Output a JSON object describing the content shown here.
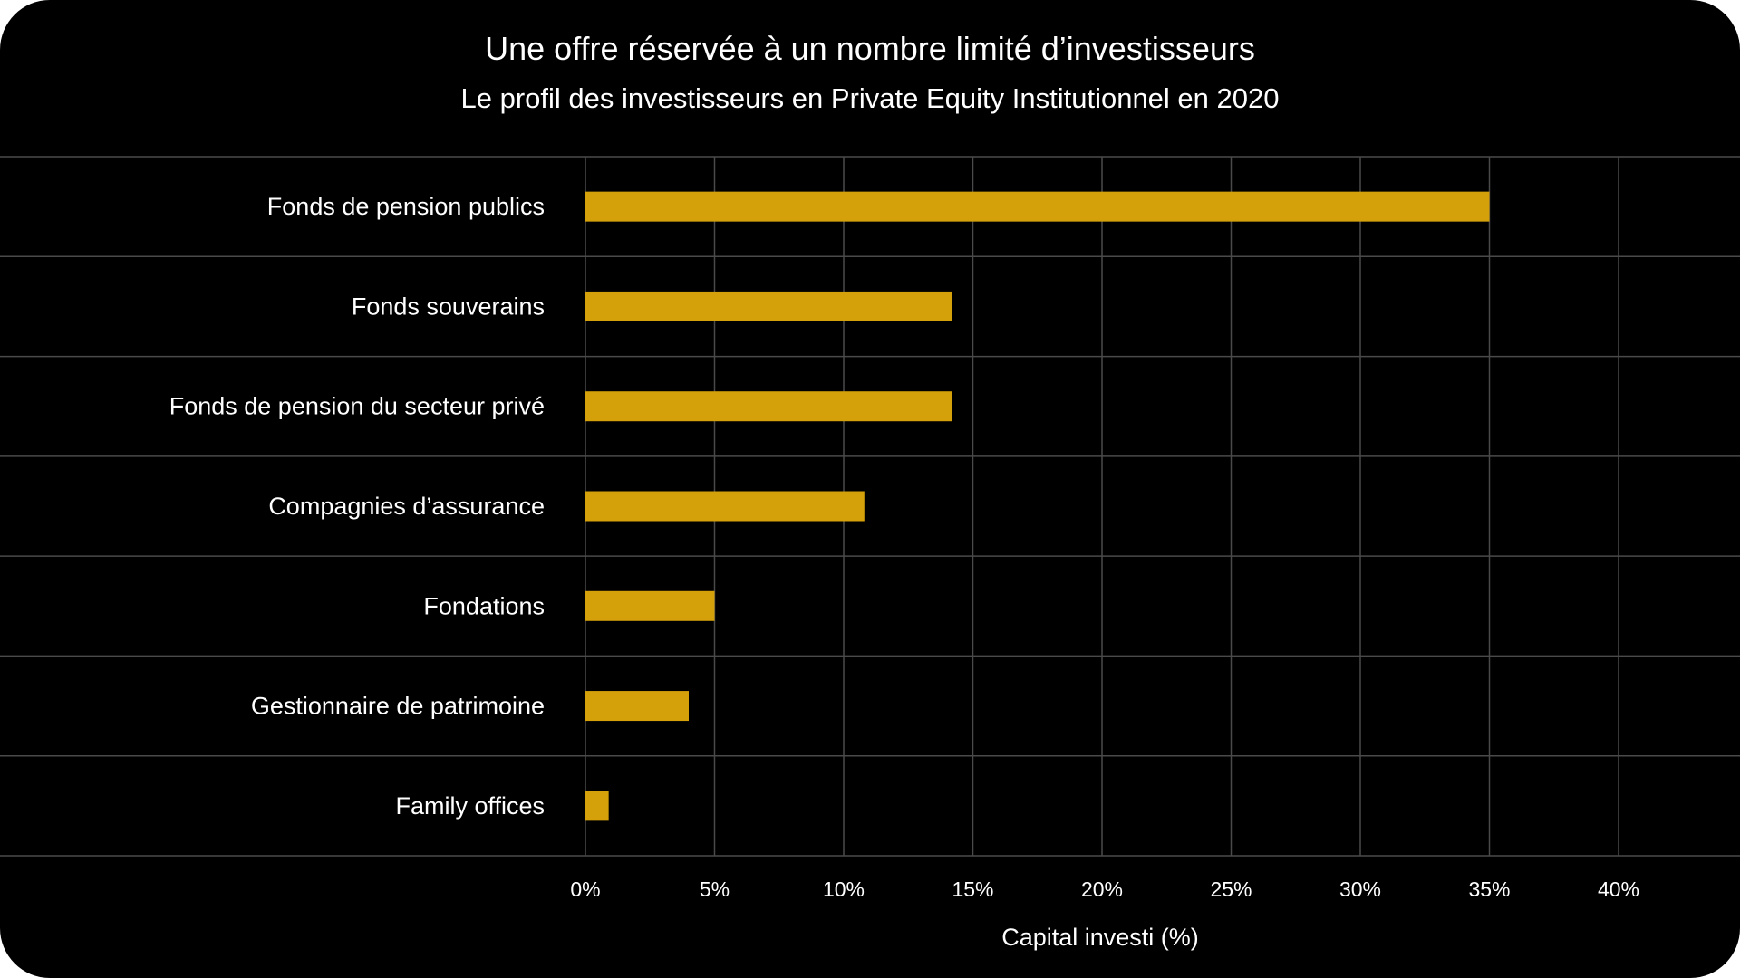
{
  "chart_data": {
    "type": "bar",
    "orientation": "horizontal",
    "title": "Une offre réservée à un nombre limité d’investisseurs",
    "subtitle": "Le profil des investisseurs en Private Equity Institutionnel en 2020",
    "categories": [
      "Fonds de pension publics",
      "Fonds souverains",
      "Fonds de pension du secteur privé",
      "Compagnies d’assurance",
      "Fondations",
      "Gestionnaire de patrimoine",
      "Family offices"
    ],
    "values": [
      35,
      14.2,
      14.2,
      10.8,
      5,
      4,
      0.9
    ],
    "xlabel": "Capital investi (%)",
    "ylabel": "",
    "xlim": [
      0,
      40
    ],
    "xticks": [
      "0%",
      "5%",
      "10%",
      "15%",
      "20%",
      "25%",
      "30%",
      "35%",
      "40%"
    ],
    "grid": true,
    "legend": "none",
    "colors": {
      "background": "#000000",
      "bar": "#d4a10b",
      "grid": "#4a4a4a",
      "text": "#ffffff"
    }
  }
}
